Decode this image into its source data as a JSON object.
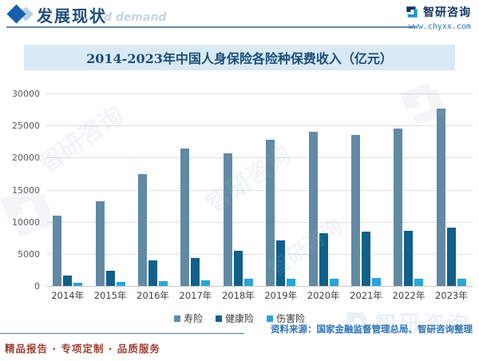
{
  "header": {
    "title": "发展现状",
    "watermark_text": "d demand",
    "brand_name": "智研咨询",
    "brand_url": "www.chyxx.com"
  },
  "chart_data": {
    "type": "bar",
    "title": "2014-2023年中国人身保险各险种保费收入（亿元）",
    "categories": [
      "2014年",
      "2015年",
      "2016年",
      "2017年",
      "2018年",
      "2019年",
      "2020年",
      "2021年",
      "2022年",
      "2023年"
    ],
    "series": [
      {
        "name": "寿险",
        "color": "#618aa5",
        "values": [
          10902,
          13242,
          17442,
          21456,
          20723,
          22754,
          23982,
          23572,
          24519,
          27646
        ]
      },
      {
        "name": "健康险",
        "color": "#10608a",
        "values": [
          1587,
          2410,
          4042,
          4389,
          5448,
          7066,
          8173,
          8447,
          8653,
          9035
        ]
      },
      {
        "name": "伤害险",
        "color": "#29a5d6",
        "values": [
          542,
          636,
          750,
          850,
          1076,
          1175,
          1174,
          1210,
          1073,
          1076
        ]
      }
    ],
    "ylim": [
      0,
      30000
    ],
    "yticks": [
      0,
      5000,
      10000,
      15000,
      20000,
      25000,
      30000
    ],
    "xlabel": "",
    "ylabel": "",
    "grid": true,
    "legend_position": "bottom"
  },
  "footer": {
    "source": "资料来源：国家金融监督管理总局、智研咨询整理",
    "tagline": "精品报告 · 专项定制 · 品质服务"
  },
  "colors": {
    "accent_dark_blue": "#1f4e79",
    "banner_bg": "#d9e9f5",
    "banner_text": "#1a4e78",
    "gridline": "#dcdcdc",
    "source_text": "#2e74b5",
    "tagline_text": "#9c3f33"
  }
}
